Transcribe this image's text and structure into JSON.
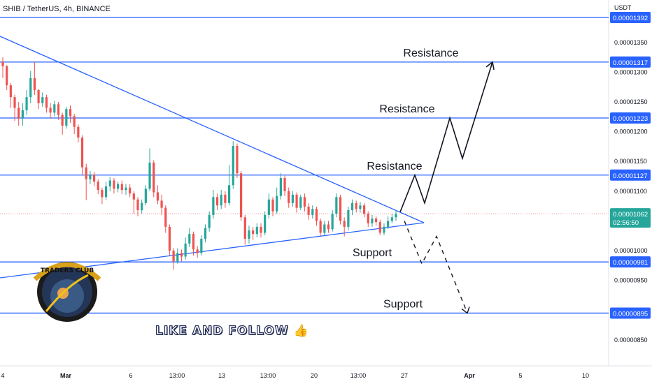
{
  "header": {
    "title": "SHIB / TetherUS, 4h, BINANCE",
    "unit": "USDT"
  },
  "colors": {
    "up": "#26a69a",
    "down": "#ef5350",
    "line": "#2962ff",
    "tag": "#2962ff",
    "current": "#26a69a"
  },
  "watermark": {
    "text": "LIKE AND FOLLOW",
    "icon": "thumbs-up-icon",
    "logo_text": "TRADERS CLUB"
  },
  "chart_data": {
    "type": "candlestick",
    "symbol": "SHIB/USDT",
    "timeframe": "4h",
    "ylim": [
      8.2e-06,
      1.412e-05
    ],
    "price_ticks": [
      "0.00001350",
      "0.00001300",
      "0.00001250",
      "0.00001200",
      "0.00001150",
      "0.00001100",
      "0.00001000",
      "0.00000950",
      "0.00000850"
    ],
    "time_ticks": [
      "4",
      "Mar",
      "6",
      "13:00",
      "13",
      "13:00",
      "20",
      "13:00",
      "27",
      "Apr",
      "5",
      "10"
    ],
    "levels": [
      {
        "price": 1.392e-05,
        "label": "0.00001392",
        "annotation": ""
      },
      {
        "price": 1.317e-05,
        "label": "0.00001317",
        "annotation": "Resistance"
      },
      {
        "price": 1.223e-05,
        "label": "0.00001223",
        "annotation": "Resistance"
      },
      {
        "price": 1.127e-05,
        "label": "0.00001127",
        "annotation": "Resistance"
      },
      {
        "price": 9.81e-06,
        "label": "0.00000981",
        "annotation": "Support"
      },
      {
        "price": 8.95e-06,
        "label": "0.00000895",
        "annotation": "Support"
      }
    ],
    "current": {
      "price": 1.062e-05,
      "label": "0.00001062",
      "countdown": "02:56:50"
    },
    "candles_start": "4",
    "candles": [
      [
        1318,
        1310,
        1325,
        1290
      ],
      [
        1310,
        1278,
        1312,
        1270
      ],
      [
        1278,
        1258,
        1282,
        1240
      ],
      [
        1258,
        1240,
        1262,
        1218
      ],
      [
        1240,
        1222,
        1250,
        1210
      ],
      [
        1222,
        1236,
        1248,
        1210
      ],
      [
        1236,
        1258,
        1270,
        1228
      ],
      [
        1258,
        1290,
        1302,
        1248
      ],
      [
        1290,
        1270,
        1318,
        1262
      ],
      [
        1270,
        1248,
        1272,
        1238
      ],
      [
        1248,
        1258,
        1266,
        1242
      ],
      [
        1258,
        1240,
        1262,
        1232
      ],
      [
        1240,
        1232,
        1248,
        1222
      ],
      [
        1232,
        1246,
        1252,
        1226
      ],
      [
        1246,
        1228,
        1250,
        1220
      ],
      [
        1228,
        1210,
        1232,
        1195
      ],
      [
        1210,
        1238,
        1242,
        1205
      ],
      [
        1238,
        1226,
        1244,
        1215
      ],
      [
        1226,
        1208,
        1230,
        1196
      ],
      [
        1208,
        1190,
        1212,
        1182
      ],
      [
        1190,
        1140,
        1194,
        1128
      ],
      [
        1140,
        1120,
        1146,
        1085
      ],
      [
        1120,
        1128,
        1134,
        1112
      ],
      [
        1128,
        1116,
        1132,
        1108
      ],
      [
        1116,
        1102,
        1120,
        1095
      ],
      [
        1102,
        1090,
        1106,
        1078
      ],
      [
        1090,
        1108,
        1116,
        1085
      ],
      [
        1108,
        1118,
        1124,
        1100
      ],
      [
        1118,
        1104,
        1122,
        1096
      ],
      [
        1104,
        1112,
        1116,
        1098
      ],
      [
        1112,
        1102,
        1118,
        1095
      ],
      [
        1102,
        1106,
        1112,
        1094
      ],
      [
        1106,
        1096,
        1112,
        1090
      ],
      [
        1096,
        1086,
        1100,
        1062
      ],
      [
        1086,
        1068,
        1090,
        1058
      ],
      [
        1068,
        1080,
        1086,
        1062
      ],
      [
        1080,
        1104,
        1110,
        1076
      ],
      [
        1104,
        1148,
        1172,
        1100
      ],
      [
        1148,
        1098,
        1152,
        1090
      ],
      [
        1098,
        1084,
        1110,
        1078
      ],
      [
        1084,
        1072,
        1094,
        1060
      ],
      [
        1072,
        1040,
        1076,
        1030
      ],
      [
        1040,
        1000,
        1044,
        992
      ],
      [
        1000,
        982,
        1004,
        968
      ],
      [
        982,
        996,
        1004,
        978
      ],
      [
        996,
        990,
        1002,
        982
      ],
      [
        990,
        1012,
        1022,
        985
      ],
      [
        1012,
        1028,
        1038,
        1006
      ],
      [
        1028,
        1002,
        1032,
        992
      ],
      [
        1002,
        996,
        1008,
        988
      ],
      [
        996,
        1020,
        1026,
        992
      ],
      [
        1020,
        1038,
        1044,
        1014
      ],
      [
        1038,
        1060,
        1066,
        1032
      ],
      [
        1060,
        1090,
        1102,
        1054
      ],
      [
        1090,
        1076,
        1096,
        1068
      ],
      [
        1076,
        1094,
        1102,
        1070
      ],
      [
        1094,
        1080,
        1100,
        1072
      ],
      [
        1080,
        1110,
        1144,
        1076
      ],
      [
        1110,
        1176,
        1184,
        1104
      ],
      [
        1176,
        1130,
        1180,
        1122
      ],
      [
        1130,
        1056,
        1134,
        1050
      ],
      [
        1056,
        1020,
        1060,
        1010
      ],
      [
        1020,
        1034,
        1042,
        1012
      ],
      [
        1034,
        1028,
        1040,
        1018
      ],
      [
        1028,
        1040,
        1046,
        1022
      ],
      [
        1040,
        1030,
        1046,
        1022
      ],
      [
        1030,
        1060,
        1066,
        1026
      ],
      [
        1060,
        1086,
        1096,
        1054
      ],
      [
        1086,
        1066,
        1090,
        1058
      ],
      [
        1066,
        1092,
        1106,
        1062
      ],
      [
        1092,
        1122,
        1130,
        1086
      ],
      [
        1122,
        1100,
        1126,
        1092
      ],
      [
        1100,
        1080,
        1106,
        1072
      ],
      [
        1080,
        1094,
        1100,
        1074
      ],
      [
        1094,
        1072,
        1098,
        1064
      ],
      [
        1072,
        1090,
        1094,
        1068
      ],
      [
        1090,
        1074,
        1096,
        1066
      ],
      [
        1074,
        1060,
        1080,
        1052
      ],
      [
        1060,
        1070,
        1076,
        1054
      ],
      [
        1070,
        1050,
        1074,
        1042
      ],
      [
        1050,
        1030,
        1054,
        1024
      ],
      [
        1030,
        1044,
        1050,
        1026
      ],
      [
        1044,
        1036,
        1050,
        1030
      ],
      [
        1036,
        1062,
        1068,
        1032
      ],
      [
        1062,
        1090,
        1096,
        1056
      ],
      [
        1090,
        1050,
        1094,
        1044
      ],
      [
        1050,
        1040,
        1056,
        1024
      ],
      [
        1040,
        1068,
        1074,
        1034
      ],
      [
        1068,
        1080,
        1086,
        1060
      ],
      [
        1080,
        1070,
        1084,
        1064
      ],
      [
        1070,
        1076,
        1082,
        1064
      ],
      [
        1076,
        1062,
        1080,
        1056
      ],
      [
        1062,
        1046,
        1066,
        1040
      ],
      [
        1046,
        1054,
        1060,
        1040
      ],
      [
        1054,
        1048,
        1058,
        1042
      ],
      [
        1048,
        1030,
        1052,
        1026
      ],
      [
        1030,
        1040,
        1046,
        1026
      ],
      [
        1040,
        1050,
        1058,
        1036
      ],
      [
        1050,
        1056,
        1062,
        1046
      ],
      [
        1056,
        1062,
        1068,
        1050
      ]
    ],
    "triangle": {
      "upper": [
        [
          "2024-02-22",
          1.39e-05
        ],
        [
          "apex",
          1.05e-05
        ]
      ],
      "lower": [
        [
          "start",
          9.6e-06
        ],
        [
          "apex",
          1.05e-05
        ]
      ]
    },
    "projection": {
      "bullish_path": [
        1065,
        1127,
        1080,
        1223,
        1155,
        1317
      ],
      "bearish_path": [
        1050,
        978,
        1024,
        895
      ]
    }
  }
}
